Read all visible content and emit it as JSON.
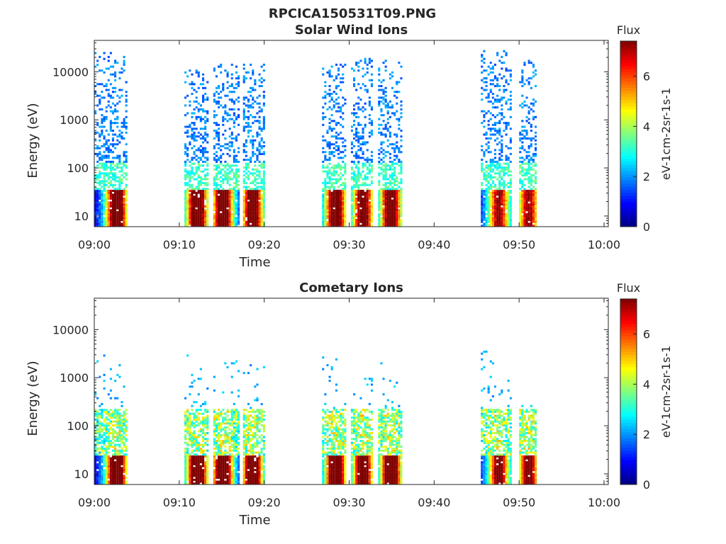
{
  "figure_title": "RPCICA150531T09.PNG",
  "colors": {
    "axis": "#262626",
    "colormap": [
      "#00007f",
      "#0000ff",
      "#007fff",
      "#00ffff",
      "#7fff7f",
      "#ffff00",
      "#ff7f00",
      "#ff0000",
      "#7f0000"
    ]
  },
  "chart_data": [
    {
      "type": "heatmap",
      "title": "Solar Wind Ions",
      "xlabel": "Time",
      "ylabel": "Energy (eV)",
      "x_ticks": [
        "09:00",
        "09:10",
        "09:20",
        "09:30",
        "09:40",
        "09:50",
        "10:00"
      ],
      "x_range_minutes": [
        0,
        60.5
      ],
      "y_ticks": [
        "10",
        "100",
        "1000",
        "10000"
      ],
      "y_scale": "log",
      "y_range": [
        6,
        45000
      ],
      "colorbar": {
        "title": "Flux",
        "label": "eV-1cm-2sr-1s-1",
        "ticks": [
          "0",
          "2",
          "4",
          "6"
        ],
        "range": [
          0,
          7.4
        ]
      },
      "bursts": [
        {
          "start_min": 0.0,
          "end_min": 3.8,
          "core_min": 2.5,
          "max_energy_ev": 25000,
          "peak_flux": 6.4
        },
        {
          "start_min": 10.6,
          "end_min": 13.2,
          "core_min": 12.0,
          "max_energy_ev": 11000,
          "peak_flux": 6.5
        },
        {
          "start_min": 14.0,
          "end_min": 17.0,
          "core_min": 15.0,
          "max_energy_ev": 15000,
          "peak_flux": 6.2
        },
        {
          "start_min": 17.5,
          "end_min": 20.1,
          "core_min": 18.5,
          "max_energy_ev": 15000,
          "peak_flux": 6.0
        },
        {
          "start_min": 26.8,
          "end_min": 29.6,
          "core_min": 28.3,
          "max_energy_ev": 15000,
          "peak_flux": 6.0
        },
        {
          "start_min": 30.2,
          "end_min": 32.8,
          "core_min": 31.5,
          "max_energy_ev": 20000,
          "peak_flux": 5.5
        },
        {
          "start_min": 33.4,
          "end_min": 36.0,
          "core_min": 34.8,
          "max_energy_ev": 18000,
          "peak_flux": 6.0
        },
        {
          "start_min": 45.5,
          "end_min": 49.0,
          "core_min": 47.5,
          "max_energy_ev": 28000,
          "peak_flux": 4.5
        },
        {
          "start_min": 50.0,
          "end_min": 52.0,
          "core_min": 51.0,
          "max_energy_ev": 18000,
          "peak_flux": 4.5
        }
      ]
    },
    {
      "type": "heatmap",
      "title": "Cometary Ions",
      "xlabel": "Time",
      "ylabel": "Energy (eV)",
      "x_ticks": [
        "09:00",
        "09:10",
        "09:20",
        "09:30",
        "09:40",
        "09:50",
        "10:00"
      ],
      "x_range_minutes": [
        0,
        60.5
      ],
      "y_ticks": [
        "10",
        "100",
        "1000",
        "10000"
      ],
      "y_scale": "log",
      "y_range": [
        6,
        45000
      ],
      "colorbar": {
        "title": "Flux",
        "label": "eV-1cm-2sr-1s-1",
        "ticks": [
          "0",
          "2",
          "4",
          "6"
        ],
        "range": [
          0,
          7.4
        ]
      },
      "bursts": [
        {
          "start_min": 0.0,
          "end_min": 3.8,
          "core_min": 2.5,
          "max_energy_ev": 5500,
          "peak_flux": 7.0
        },
        {
          "start_min": 10.6,
          "end_min": 13.2,
          "core_min": 12.0,
          "max_energy_ev": 3000,
          "peak_flux": 7.0
        },
        {
          "start_min": 14.0,
          "end_min": 17.0,
          "core_min": 15.0,
          "max_energy_ev": 3000,
          "peak_flux": 7.0
        },
        {
          "start_min": 17.5,
          "end_min": 20.1,
          "core_min": 18.5,
          "max_energy_ev": 2500,
          "peak_flux": 6.8
        },
        {
          "start_min": 26.8,
          "end_min": 29.6,
          "core_min": 28.3,
          "max_energy_ev": 4000,
          "peak_flux": 7.0
        },
        {
          "start_min": 30.2,
          "end_min": 32.8,
          "core_min": 31.5,
          "max_energy_ev": 1300,
          "peak_flux": 6.0
        },
        {
          "start_min": 33.4,
          "end_min": 36.0,
          "core_min": 34.8,
          "max_energy_ev": 4000,
          "peak_flux": 7.0
        },
        {
          "start_min": 45.5,
          "end_min": 49.0,
          "core_min": 47.5,
          "max_energy_ev": 4500,
          "peak_flux": 5.0
        },
        {
          "start_min": 50.0,
          "end_min": 52.0,
          "core_min": 51.0,
          "max_energy_ev": 330,
          "peak_flux": 5.0
        }
      ]
    }
  ]
}
